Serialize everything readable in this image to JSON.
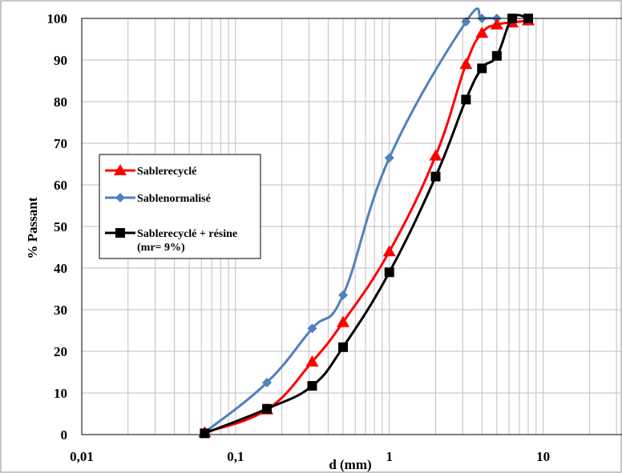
{
  "chart_data": {
    "type": "line",
    "x_scale": "log",
    "xlabel": "d (mm)",
    "ylabel": "% Passant",
    "xlim": [
      0.01,
      35
    ],
    "ylim": [
      0,
      100
    ],
    "x_ticks": [
      {
        "value": 0.01,
        "label": "0,01"
      },
      {
        "value": 0.1,
        "label": "0,1"
      },
      {
        "value": 1,
        "label": "1"
      },
      {
        "value": 10,
        "label": "10"
      }
    ],
    "y_ticks": [
      {
        "value": 0,
        "label": "0"
      },
      {
        "value": 10,
        "label": "10"
      },
      {
        "value": 20,
        "label": "20"
      },
      {
        "value": 30,
        "label": "30"
      },
      {
        "value": 40,
        "label": "40"
      },
      {
        "value": 50,
        "label": "50"
      },
      {
        "value": 60,
        "label": "60"
      },
      {
        "value": 70,
        "label": "70"
      },
      {
        "value": 80,
        "label": "80"
      },
      {
        "value": 90,
        "label": "90"
      },
      {
        "value": 100,
        "label": "100"
      }
    ],
    "grid": {
      "horizontal": true,
      "vertical_minor": true
    },
    "legend_position": "middle-left",
    "series": [
      {
        "name": "Sablerecyclé",
        "color": "#ff0000",
        "marker": "triangle",
        "points": [
          [
            0.063,
            0.5
          ],
          [
            0.16,
            6
          ],
          [
            0.315,
            17.5
          ],
          [
            0.5,
            27
          ],
          [
            1,
            44
          ],
          [
            2,
            67
          ],
          [
            3.15,
            89
          ],
          [
            4,
            96.5
          ],
          [
            5,
            98.5
          ],
          [
            6.3,
            99
          ],
          [
            8,
            99.5
          ]
        ]
      },
      {
        "name": "Sablenormalisé",
        "color": "#4f81bd",
        "marker": "diamond",
        "points": [
          [
            0.063,
            0.5
          ],
          [
            0.16,
            12.5
          ],
          [
            0.315,
            25.5
          ],
          [
            0.5,
            33.5
          ],
          [
            1,
            66.5
          ],
          [
            3.15,
            99.2
          ],
          [
            4,
            100
          ],
          [
            5,
            100
          ]
        ]
      },
      {
        "name": "Sablerecyclé + résine",
        "name_line2": "(mr= 9%)",
        "color": "#000000",
        "marker": "square",
        "points": [
          [
            0.063,
            0.3
          ],
          [
            0.16,
            6.2
          ],
          [
            0.315,
            11.7
          ],
          [
            0.5,
            21
          ],
          [
            1,
            39
          ],
          [
            2,
            62
          ],
          [
            3.15,
            80.5
          ],
          [
            4,
            88
          ],
          [
            5,
            91
          ],
          [
            6.3,
            100
          ],
          [
            8,
            100
          ]
        ]
      }
    ]
  }
}
